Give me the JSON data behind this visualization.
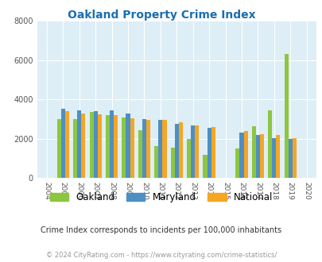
{
  "title": "Oakland Property Crime Index",
  "title_color": "#1a6faf",
  "years": [
    2004,
    2005,
    2006,
    2007,
    2008,
    2009,
    2010,
    2011,
    2012,
    2013,
    2014,
    2015,
    2016,
    2017,
    2018,
    2019,
    2020
  ],
  "oakland": [
    null,
    3000,
    3000,
    3350,
    3200,
    3100,
    2450,
    1650,
    1550,
    2000,
    1200,
    null,
    1500,
    2650,
    3450,
    6300,
    null
  ],
  "maryland": [
    null,
    3550,
    3450,
    3400,
    3450,
    3300,
    3000,
    2950,
    2750,
    2700,
    2550,
    null,
    2300,
    2200,
    2050,
    2000,
    null
  ],
  "national": [
    null,
    3400,
    3300,
    3250,
    3200,
    3050,
    2950,
    2950,
    2850,
    2700,
    2600,
    null,
    2400,
    2250,
    2200,
    2050,
    null
  ],
  "oakland_color": "#8dc63f",
  "maryland_color": "#4d8fc4",
  "national_color": "#f5a623",
  "bg_color": "#ddeef6",
  "ylim": [
    0,
    8000
  ],
  "yticks": [
    0,
    2000,
    4000,
    6000,
    8000
  ],
  "grid_color": "#ffffff",
  "subtitle": "Crime Index corresponds to incidents per 100,000 inhabitants",
  "subtitle_color": "#333333",
  "footer": "© 2024 CityRating.com - https://www.cityrating.com/crime-statistics/",
  "footer_color": "#999999"
}
